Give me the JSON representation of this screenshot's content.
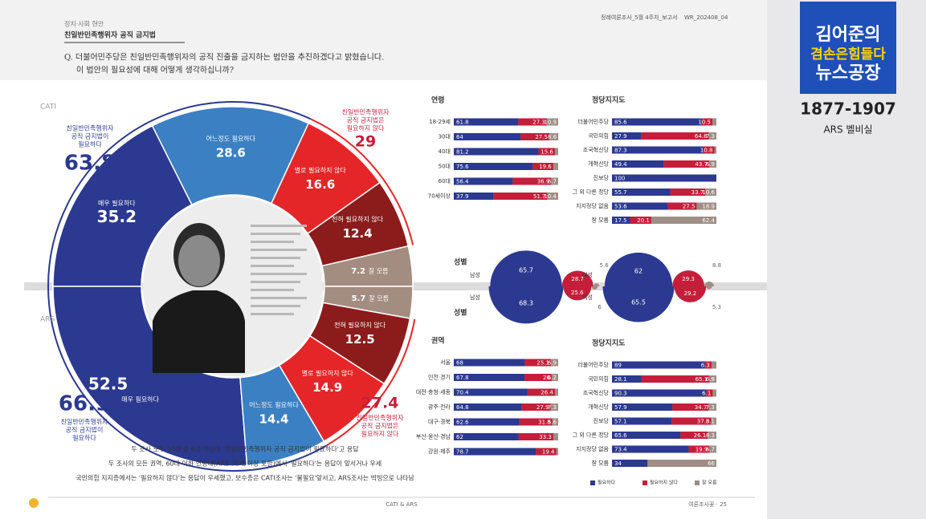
{
  "header": {
    "section": "정치·사회 현안",
    "title": "친일반민족행위자 공직 금지법",
    "report": "정례여론조사_5월 4주차_보고서",
    "code": "WR_202408_04"
  },
  "question": {
    "lines": [
      "Q. 더불어민주당은 친일반민족행위자의 공직 진출을 금지하는 법안을 추진하겠다고 밝혔습니다.",
      "이 법안의 필요성에 대해 어떻게 생각하십니까?"
    ]
  },
  "donut": {
    "halves": [
      {
        "survey": "CATI",
        "segments": [
          {
            "label": "매우 필요하다",
            "value": 35.2
          },
          {
            "label": "어느정도 필요하다",
            "value": 28.6
          },
          {
            "label": "별로 필요하지 않다",
            "value": 16.6
          },
          {
            "label": "전혀 필요하지 않다",
            "value": 12.4
          },
          {
            "label": "잘 모름",
            "value": 7.2
          }
        ],
        "need": {
          "lines": [
            "친일반민족행위자",
            "공직 금지법이",
            "필요하다"
          ],
          "value": 63.8
        },
        "not_need": {
          "lines": [
            "친일반민족행위자",
            "공직 금지법은",
            "필요하지 않다"
          ],
          "value": 29.0
        }
      },
      {
        "survey": "ARS",
        "segments": [
          {
            "label": "매우 필요하다",
            "value": 52.5
          },
          {
            "label": "어느정도 필요하다",
            "value": 14.4
          },
          {
            "label": "별로 필요하지 않다",
            "value": 14.9
          },
          {
            "label": "전혀 필요하지 않다",
            "value": 12.5
          },
          {
            "label": "잘 모름",
            "value": 5.7
          }
        ],
        "need": {
          "lines": [
            "친일반민족행위자",
            "공직 금지법이",
            "필요하다"
          ],
          "value": 66.9
        },
        "not_need": {
          "lines": [
            "친일반민족행위자",
            "공직 금지법은",
            "필요하지 않다"
          ],
          "value": 27.4
        }
      }
    ],
    "colors": [
      "#2b3990",
      "#3b80c3",
      "#e52629",
      "#8c1c1c",
      "#a38d80"
    ]
  },
  "panels": [
    {
      "title": "연령",
      "rows": [
        {
          "label": "18-29세",
          "values": [
            61.8,
            27.3,
            10.9
          ]
        },
        {
          "label": "30대",
          "values": [
            64.0,
            27.5,
            8.6
          ]
        },
        {
          "label": "40대",
          "values": [
            81.2,
            15.6
          ]
        },
        {
          "label": "50대",
          "values": [
            75.6,
            19.6
          ]
        },
        {
          "label": "60대",
          "values": [
            56.4,
            36.9,
            6.7
          ]
        },
        {
          "label": "70세이상",
          "values": [
            37.9,
            51.7,
            10.4
          ]
        }
      ]
    },
    {
      "title": "정당지지도",
      "rows": [
        {
          "label": "더불어민주당",
          "values": [
            85.6,
            10.5
          ]
        },
        {
          "label": "국민의힘",
          "values": [
            27.9,
            64.8,
            7.3
          ]
        },
        {
          "label": "조국혁신당",
          "values": [
            87.3,
            10.8
          ]
        },
        {
          "label": "개혁신당",
          "values": [
            49.4,
            43.7,
            6.9
          ]
        },
        {
          "label": "진보당",
          "values": [
            100.0
          ]
        },
        {
          "label": "그 외 다른 정당",
          "values": [
            55.7,
            33.7,
            10.6
          ]
        },
        {
          "label": "지지정당 없음",
          "values": [
            53.6,
            27.5,
            18.9
          ]
        },
        {
          "label": "잘 모름",
          "values": [
            17.5,
            20.1,
            62.4
          ]
        }
      ]
    },
    {
      "title": "권역",
      "rows": [
        {
          "label": "서울",
          "values": [
            68.0,
            25.1,
            6.9
          ]
        },
        {
          "label": "인천·경기",
          "values": [
            67.8,
            26.0,
            6.2
          ]
        },
        {
          "label": "대전·충청·세종",
          "values": [
            70.4,
            26.4
          ]
        },
        {
          "label": "광주·전라",
          "values": [
            64.8,
            27.9,
            7.3
          ]
        },
        {
          "label": "대구·경북",
          "values": [
            62.6,
            31.8,
            5.6
          ]
        },
        {
          "label": "부산·울산·경남",
          "values": [
            62.0,
            33.3
          ]
        },
        {
          "label": "강원·제주",
          "values": [
            78.7,
            19.4
          ]
        }
      ]
    },
    {
      "title": "정당지지도",
      "rows": [
        {
          "label": "더불어민주당",
          "values": [
            89.0,
            6.3
          ]
        },
        {
          "label": "국민의힘",
          "values": [
            28.1,
            65.1,
            6.8
          ]
        },
        {
          "label": "조국혁신당",
          "values": [
            90.3,
            6.1
          ]
        },
        {
          "label": "개혁신당",
          "values": [
            57.9,
            34.7,
            7.3
          ]
        },
        {
          "label": "진보당",
          "values": [
            57.1,
            37.8,
            5.1
          ]
        },
        {
          "label": "그 외 다른 정당",
          "values": [
            65.6,
            26.1,
            8.3
          ]
        },
        {
          "label": "지지정당 없음",
          "values": [
            73.4,
            19.9,
            6.7
          ]
        },
        {
          "label": "잘 모름",
          "values": [
            34.0,
            null,
            66.0
          ]
        }
      ]
    }
  ],
  "legend": [
    {
      "label": "필요하다",
      "color": "#2b3990"
    },
    {
      "label": "필요하지 않다",
      "color": "#c41e3a"
    },
    {
      "label": "잘 모름",
      "color": "#9e8e86"
    }
  ],
  "sex": {
    "title": "성별",
    "groups": [
      {
        "label": "남성",
        "cati": [
          65.7,
          28.7,
          5.6
        ],
        "ars": [
          68.3,
          25.6,
          6.0
        ]
      },
      {
        "label": "여성",
        "cati": [
          62.0,
          29.3,
          8.8
        ],
        "ars": [
          65.5,
          29.2,
          5.3
        ]
      }
    ]
  },
  "summary": [
    "두 조사 모두 10명 중 6명 이상이 '친일반민족행위자 공직 금지법이 필요하다'고 응답",
    "두 조사의 모든 권역, 60대 이하 연령대(ARS 70세 이상 포함)에서 '필요하다'는 응답이 앞서거나 우세",
    "국민의힘 지지층에서는 '필요하지 않다'는 응답이 우세했고, 보수층은 CATI조사는 '불필요'앞서고, ARS조사는 박빙으로 나타남"
  ],
  "footer": {
    "center": "CATI & ARS",
    "right": "여론조사꽃 · 25"
  },
  "logo": {
    "line1": "김어준의",
    "line2": "겸손은힘들다",
    "line3": "뉴스공장",
    "phone": "1877-1907",
    "ars": "ARS 벨비실"
  }
}
